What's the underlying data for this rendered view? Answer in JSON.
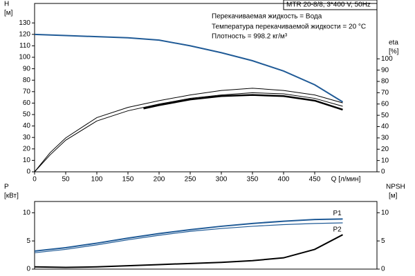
{
  "chart_data": [
    {
      "type": "line",
      "title": "MTR 20-8/8, 3*400 V, 50Hz",
      "annotations": [
        "Перекачиваемая жидкость = Вода",
        "Температура перекачиваемой жидкости = 20 °C",
        "Плотность = 998.2 кг/м³"
      ],
      "ylabel": "H",
      "yunit": "[м]",
      "y2label": "eta",
      "y2unit": "[%]",
      "xlabel": "Q [л/мин]",
      "xlim": [
        0,
        550
      ],
      "xticks": [
        0,
        50,
        100,
        150,
        200,
        250,
        300,
        350,
        400,
        450
      ],
      "ylim": [
        0,
        147
      ],
      "yticks": [
        0,
        10,
        20,
        30,
        40,
        50,
        60,
        70,
        80,
        90,
        100,
        110,
        120,
        130
      ],
      "y2lim": [
        0,
        149
      ],
      "y2ticks": [
        0,
        10,
        20,
        30,
        40,
        50,
        60,
        70,
        80,
        90,
        100
      ],
      "series": [
        {
          "color": "#1f5a96",
          "width": 2,
          "x": [
            0,
            50,
            100,
            150,
            200,
            250,
            300,
            350,
            400,
            450,
            495
          ],
          "values": [
            120,
            119,
            118,
            117,
            115,
            110,
            104,
            97,
            88,
            76,
            61
          ]
        },
        {
          "color": "#000000",
          "width": 1,
          "axis": "y2",
          "x": [
            0,
            25,
            50,
            100,
            150,
            200,
            250,
            300,
            350,
            400,
            450,
            495
          ],
          "values": [
            0,
            17,
            30,
            48,
            57,
            63,
            68,
            72,
            74,
            72,
            68,
            61
          ]
        },
        {
          "color": "#000000",
          "width": 1,
          "axis": "y2",
          "x": [
            0,
            25,
            50,
            100,
            150,
            200,
            250,
            300,
            350,
            400,
            450,
            495
          ],
          "values": [
            0,
            15,
            28,
            45,
            54,
            60,
            65,
            68,
            70,
            69,
            65,
            58
          ]
        },
        {
          "color": "#000000",
          "width": 2.5,
          "axis": "y2",
          "x": [
            175,
            200,
            250,
            300,
            350,
            400,
            450,
            495
          ],
          "values": [
            56,
            59,
            64,
            67,
            68,
            67,
            63,
            55
          ]
        }
      ]
    },
    {
      "type": "line",
      "ylabel": "P",
      "yunit": "[кВт]",
      "y2label": "NPSH",
      "y2unit": "[м]",
      "xlim": [
        0,
        550
      ],
      "ylim": [
        0,
        12
      ],
      "yticks": [
        0,
        5,
        10
      ],
      "y2lim": [
        0,
        12
      ],
      "y2ticks": [
        0,
        5,
        10
      ],
      "series": [
        {
          "name": "P1",
          "color": "#1f5a96",
          "width": 2,
          "x": [
            0,
            50,
            100,
            150,
            200,
            250,
            300,
            350,
            400,
            450,
            495
          ],
          "values": [
            3.2,
            3.8,
            4.6,
            5.5,
            6.3,
            7.0,
            7.6,
            8.1,
            8.5,
            8.8,
            8.9
          ]
        },
        {
          "name": "P2",
          "color": "#1f5a96",
          "width": 1.2,
          "x": [
            0,
            50,
            100,
            150,
            200,
            250,
            300,
            350,
            400,
            450,
            495
          ],
          "values": [
            2.9,
            3.5,
            4.3,
            5.2,
            6.0,
            6.7,
            7.2,
            7.6,
            7.9,
            8.1,
            8.2
          ]
        },
        {
          "color": "#000000",
          "width": 2,
          "axis": "y2",
          "x": [
            0,
            50,
            100,
            150,
            200,
            250,
            300,
            350,
            400,
            450,
            495
          ],
          "values": [
            0.4,
            0.3,
            0.4,
            0.6,
            0.8,
            1.0,
            1.2,
            1.5,
            2.0,
            3.5,
            6.1
          ]
        }
      ]
    }
  ]
}
